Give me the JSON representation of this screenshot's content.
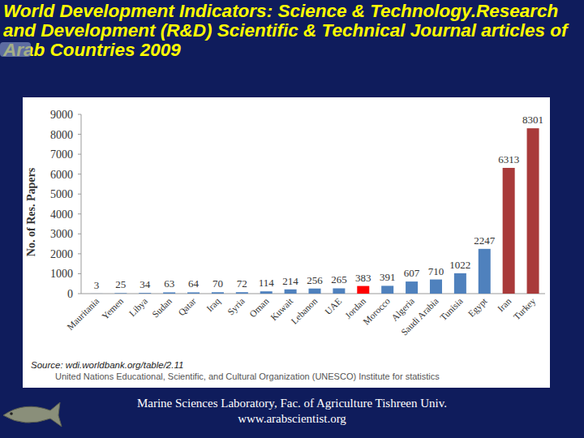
{
  "chart_data": {
    "type": "bar",
    "title": "World Development Indicators: Science & Technology.Research and Development (R&D) Scientific & Technical Journal articles of Arab Countries 2009",
    "y_label": "No. of Res. Papers",
    "categories": [
      "Mauritania",
      "Yemen",
      "Libya",
      "Sudan",
      "Qatar",
      "Iraq",
      "Syria",
      "Oman",
      "Kuwait",
      "Lebanon",
      "UAE",
      "Jordan",
      "Morocco",
      "Algeria",
      "Saudi Arabia",
      "Tunisia",
      "Egypt",
      "Iran",
      "Turkey"
    ],
    "values": [
      3,
      25,
      34,
      63,
      64,
      70,
      72,
      114,
      214,
      256,
      265,
      383,
      391,
      607,
      710,
      1022,
      2247,
      6313,
      8301
    ],
    "colors": [
      "#4f81bd",
      "#4f81bd",
      "#4f81bd",
      "#4f81bd",
      "#4f81bd",
      "#4f81bd",
      "#4f81bd",
      "#4f81bd",
      "#4f81bd",
      "#4f81bd",
      "#4f81bd",
      "#ff0000",
      "#4f81bd",
      "#4f81bd",
      "#4f81bd",
      "#4f81bd",
      "#4f81bd",
      "#a93a3a",
      "#a93a3a"
    ],
    "ylim": [
      0,
      9000
    ],
    "yticks": [
      0,
      1000,
      2000,
      3000,
      4000,
      5000,
      6000,
      7000,
      8000,
      9000
    ],
    "grid": false,
    "data_labels": true,
    "annotations": [
      "Source: wdi.worldbank.org/table/2.11",
      "United Nations Educational, Scientific, and Cultural Organization (UNESCO) Institute for statistics"
    ]
  },
  "footer": [
    "Marine Sciences Laboratory, Fac. of Agriculture Tishreen Univ.",
    "www.arabscientist.org"
  ]
}
